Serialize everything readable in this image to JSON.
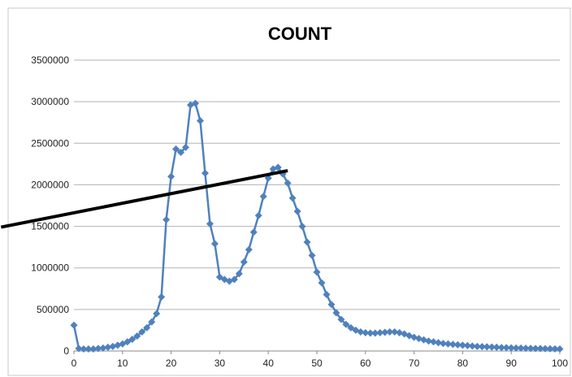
{
  "chart_data": {
    "type": "line",
    "title": "COUNT",
    "xlabel": "",
    "ylabel": "",
    "xlim": [
      0,
      100
    ],
    "ylim": [
      0,
      3500000
    ],
    "xticks": [
      0,
      10,
      20,
      30,
      40,
      50,
      60,
      70,
      80,
      90,
      100
    ],
    "yticks": [
      0,
      500000,
      1000000,
      1500000,
      2000000,
      2500000,
      3000000,
      3500000
    ],
    "grid": true,
    "legend": "none",
    "series": [
      {
        "color": "#4F81BD",
        "marker": "diamond",
        "x": [
          0,
          1,
          2,
          3,
          4,
          5,
          6,
          7,
          8,
          9,
          10,
          11,
          12,
          13,
          14,
          15,
          16,
          17,
          18,
          19,
          20,
          21,
          22,
          23,
          24,
          25,
          26,
          27,
          28,
          29,
          30,
          31,
          32,
          33,
          34,
          35,
          36,
          37,
          38,
          39,
          40,
          41,
          42,
          43,
          44,
          45,
          46,
          47,
          48,
          49,
          50,
          51,
          52,
          53,
          54,
          55,
          56,
          57,
          58,
          59,
          60,
          61,
          62,
          63,
          64,
          65,
          66,
          67,
          68,
          69,
          70,
          71,
          72,
          73,
          74,
          75,
          76,
          77,
          78,
          79,
          80,
          81,
          82,
          83,
          84,
          85,
          86,
          87,
          88,
          89,
          90,
          91,
          92,
          93,
          94,
          95,
          96,
          97,
          98,
          99,
          100
        ],
        "y": [
          310000,
          30000,
          25000,
          25000,
          25000,
          30000,
          35000,
          45000,
          55000,
          70000,
          85000,
          110000,
          140000,
          180000,
          230000,
          280000,
          350000,
          450000,
          650000,
          1580000,
          2100000,
          2430000,
          2390000,
          2450000,
          2960000,
          2980000,
          2770000,
          2140000,
          1530000,
          1290000,
          890000,
          860000,
          840000,
          860000,
          930000,
          1070000,
          1220000,
          1430000,
          1630000,
          1860000,
          2080000,
          2190000,
          2210000,
          2130000,
          2020000,
          1840000,
          1680000,
          1500000,
          1310000,
          1150000,
          950000,
          820000,
          680000,
          560000,
          460000,
          380000,
          320000,
          280000,
          250000,
          230000,
          220000,
          215000,
          215000,
          220000,
          225000,
          230000,
          230000,
          220000,
          205000,
          185000,
          165000,
          150000,
          135000,
          120000,
          110000,
          100000,
          90000,
          85000,
          80000,
          75000,
          70000,
          65000,
          60000,
          55000,
          52000,
          50000,
          48000,
          45000,
          42000,
          40000,
          38000,
          36000,
          35000,
          33000,
          32000,
          30000,
          30000,
          28000,
          27000,
          26000,
          25000
        ]
      }
    ]
  },
  "annotation": {
    "kind": "trend-line",
    "color": "#000000",
    "from": [
      -15,
      1490000
    ],
    "to": [
      44,
      2170000
    ]
  }
}
